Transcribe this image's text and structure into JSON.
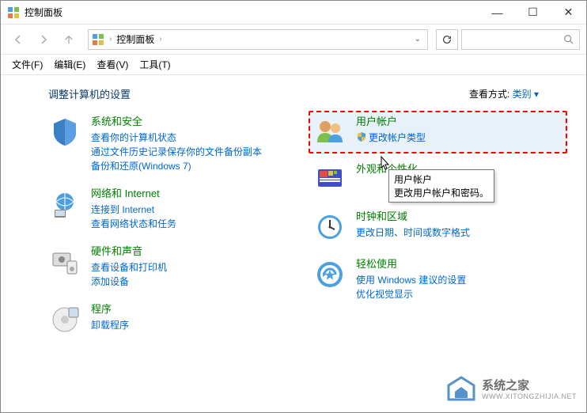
{
  "window": {
    "title": "控制面板",
    "min": "—",
    "max": "☐",
    "close": "✕"
  },
  "nav": {
    "breadcrumb_icon": "cp",
    "breadcrumb": "控制面板",
    "refresh": "↻",
    "search_placeholder": ""
  },
  "menu": {
    "file": "文件(F)",
    "edit": "编辑(E)",
    "view": "查看(V)",
    "tools": "工具(T)"
  },
  "header": {
    "title": "调整计算机的设置",
    "view_by_label": "查看方式:",
    "view_by_value": "类别 ▾"
  },
  "categories": {
    "left": [
      {
        "title": "系统和安全",
        "links": [
          "查看你的计算机状态",
          "通过文件历史记录保存你的文件备份副本",
          "备份和还原(Windows 7)"
        ]
      },
      {
        "title": "网络和 Internet",
        "links": [
          "连接到 Internet",
          "查看网络状态和任务"
        ]
      },
      {
        "title": "硬件和声音",
        "links": [
          "查看设备和打印机",
          "添加设备"
        ]
      },
      {
        "title": "程序",
        "links": [
          "卸载程序"
        ]
      }
    ],
    "right": [
      {
        "title": "用户帐户",
        "links": [
          "更改帐户类型"
        ],
        "shield": true,
        "highlighted": true
      },
      {
        "title": "外观和个性化",
        "links": []
      },
      {
        "title": "时钟和区域",
        "links": [
          "更改日期、时间或数字格式"
        ]
      },
      {
        "title": "轻松使用",
        "links": [
          "使用 Windows 建议的设置",
          "优化视觉显示"
        ]
      }
    ]
  },
  "tooltip": {
    "title": "用户帐户",
    "desc": "更改用户帐户和密码。"
  },
  "watermark": {
    "name": "系统之家",
    "url": "WWW.XITONGZHIJIA.NET"
  },
  "colors": {
    "title_green": "#008000",
    "link_blue": "#0066cc",
    "highlight_border": "#ff0000",
    "highlight_bg": "#e8f0f8"
  }
}
